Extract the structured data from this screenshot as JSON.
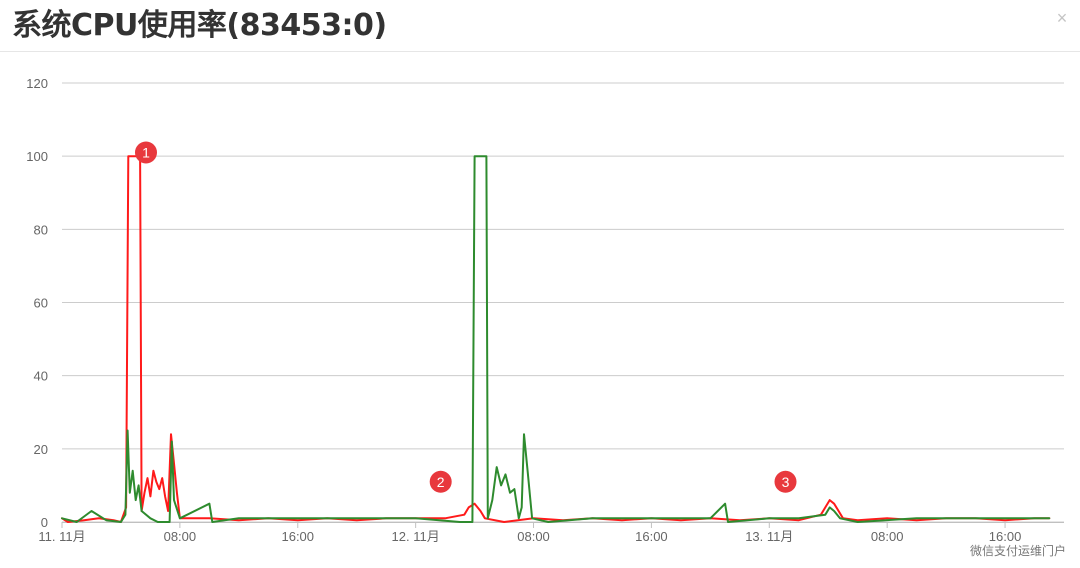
{
  "window": {
    "title": "系统CPU使用率(83453:0)",
    "close_glyph": "×"
  },
  "watermark": "微信支付运维门户",
  "colors": {
    "grid": "#cccccc",
    "axis_text": "#666666",
    "series_green": "#2e8b2e",
    "series_red": "#ff1a1a",
    "marker_fill": "#e8383d",
    "marker_text": "#ffffff"
  },
  "chart_data": {
    "type": "line",
    "title": "系统CPU使用率(83453:0)",
    "xlabel": "",
    "ylabel": "",
    "ylim": [
      0,
      120
    ],
    "y_ticks": [
      0,
      20,
      40,
      60,
      80,
      100,
      120
    ],
    "x_unit": "hours",
    "xlim": [
      0,
      68
    ],
    "x_ticks": [
      {
        "value": 0,
        "label": "11. 11月"
      },
      {
        "value": 8,
        "label": "08:00"
      },
      {
        "value": 16,
        "label": "16:00"
      },
      {
        "value": 24,
        "label": "12. 11月"
      },
      {
        "value": 32,
        "label": "08:00"
      },
      {
        "value": 40,
        "label": "16:00"
      },
      {
        "value": 48,
        "label": "13. 11月"
      },
      {
        "value": 56,
        "label": "08:00"
      },
      {
        "value": 64,
        "label": "16:00"
      }
    ],
    "grid": true,
    "legend": "none",
    "series": [
      {
        "color": "#ff1a1a",
        "points": [
          [
            0,
            1
          ],
          [
            0.4,
            0
          ],
          [
            1.5,
            0.5
          ],
          [
            2.5,
            1
          ],
          [
            3.5,
            0.5
          ],
          [
            4.0,
            0
          ],
          [
            4.35,
            4
          ],
          [
            4.5,
            100
          ],
          [
            5.3,
            100
          ],
          [
            5.4,
            3
          ],
          [
            5.6,
            8
          ],
          [
            5.8,
            12
          ],
          [
            6.0,
            7
          ],
          [
            6.2,
            14
          ],
          [
            6.4,
            11
          ],
          [
            6.6,
            9
          ],
          [
            6.8,
            12
          ],
          [
            7.0,
            7
          ],
          [
            7.2,
            3
          ],
          [
            7.4,
            24
          ],
          [
            7.6,
            16
          ],
          [
            7.8,
            8
          ],
          [
            8.0,
            1
          ],
          [
            10,
            1
          ],
          [
            12,
            0.5
          ],
          [
            14,
            1
          ],
          [
            16,
            0.5
          ],
          [
            18,
            1
          ],
          [
            20,
            0.5
          ],
          [
            22,
            1
          ],
          [
            24,
            1
          ],
          [
            26,
            1
          ],
          [
            27.3,
            2
          ],
          [
            27.6,
            4
          ],
          [
            28.0,
            5
          ],
          [
            28.4,
            3
          ],
          [
            28.7,
            1
          ],
          [
            30,
            0
          ],
          [
            32,
            1
          ],
          [
            34,
            0.5
          ],
          [
            36,
            1
          ],
          [
            38,
            0.5
          ],
          [
            40,
            1
          ],
          [
            42,
            0.5
          ],
          [
            44,
            1
          ],
          [
            46,
            0.5
          ],
          [
            48,
            1
          ],
          [
            50,
            0.5
          ],
          [
            51.5,
            2
          ],
          [
            51.8,
            4
          ],
          [
            52.1,
            6
          ],
          [
            52.4,
            5
          ],
          [
            52.7,
            3
          ],
          [
            53.0,
            1
          ],
          [
            54,
            0.5
          ],
          [
            56,
            1
          ],
          [
            58,
            0.5
          ],
          [
            60,
            1
          ],
          [
            62,
            1
          ],
          [
            64,
            0.5
          ],
          [
            66,
            1
          ],
          [
            67,
            1
          ]
        ]
      },
      {
        "color": "#2e8b2e",
        "points": [
          [
            0,
            1
          ],
          [
            1,
            0
          ],
          [
            2,
            3
          ],
          [
            3,
            0.5
          ],
          [
            4,
            0
          ],
          [
            4.3,
            2
          ],
          [
            4.45,
            25
          ],
          [
            4.6,
            8
          ],
          [
            4.8,
            14
          ],
          [
            5.0,
            6
          ],
          [
            5.2,
            10
          ],
          [
            5.4,
            3
          ],
          [
            6.0,
            1
          ],
          [
            6.5,
            0
          ],
          [
            7.3,
            0
          ],
          [
            7.45,
            22
          ],
          [
            7.6,
            6
          ],
          [
            8.0,
            1
          ],
          [
            10,
            5
          ],
          [
            10.2,
            0
          ],
          [
            12,
            1
          ],
          [
            16,
            1
          ],
          [
            20,
            1
          ],
          [
            24,
            1
          ],
          [
            27,
            0
          ],
          [
            27.85,
            0
          ],
          [
            28.0,
            100
          ],
          [
            28.8,
            100
          ],
          [
            28.9,
            1
          ],
          [
            29.2,
            6
          ],
          [
            29.5,
            15
          ],
          [
            29.8,
            10
          ],
          [
            30.1,
            13
          ],
          [
            30.4,
            8
          ],
          [
            30.7,
            9
          ],
          [
            31.0,
            1
          ],
          [
            31.2,
            4
          ],
          [
            31.35,
            24
          ],
          [
            31.6,
            14
          ],
          [
            31.9,
            1
          ],
          [
            33,
            0
          ],
          [
            36,
            1
          ],
          [
            40,
            1
          ],
          [
            44,
            1
          ],
          [
            45,
            5
          ],
          [
            45.2,
            0
          ],
          [
            48,
            1
          ],
          [
            50,
            1
          ],
          [
            51.8,
            2
          ],
          [
            52.1,
            4
          ],
          [
            52.4,
            3
          ],
          [
            52.8,
            1
          ],
          [
            54,
            0
          ],
          [
            58,
            1
          ],
          [
            62,
            1
          ],
          [
            66,
            1
          ],
          [
            67,
            1
          ]
        ]
      }
    ],
    "annotations": [
      {
        "label": "1",
        "x": 5.7,
        "y": 101
      },
      {
        "label": "2",
        "x": 25.7,
        "y": 11
      },
      {
        "label": "3",
        "x": 49.1,
        "y": 11
      }
    ]
  }
}
